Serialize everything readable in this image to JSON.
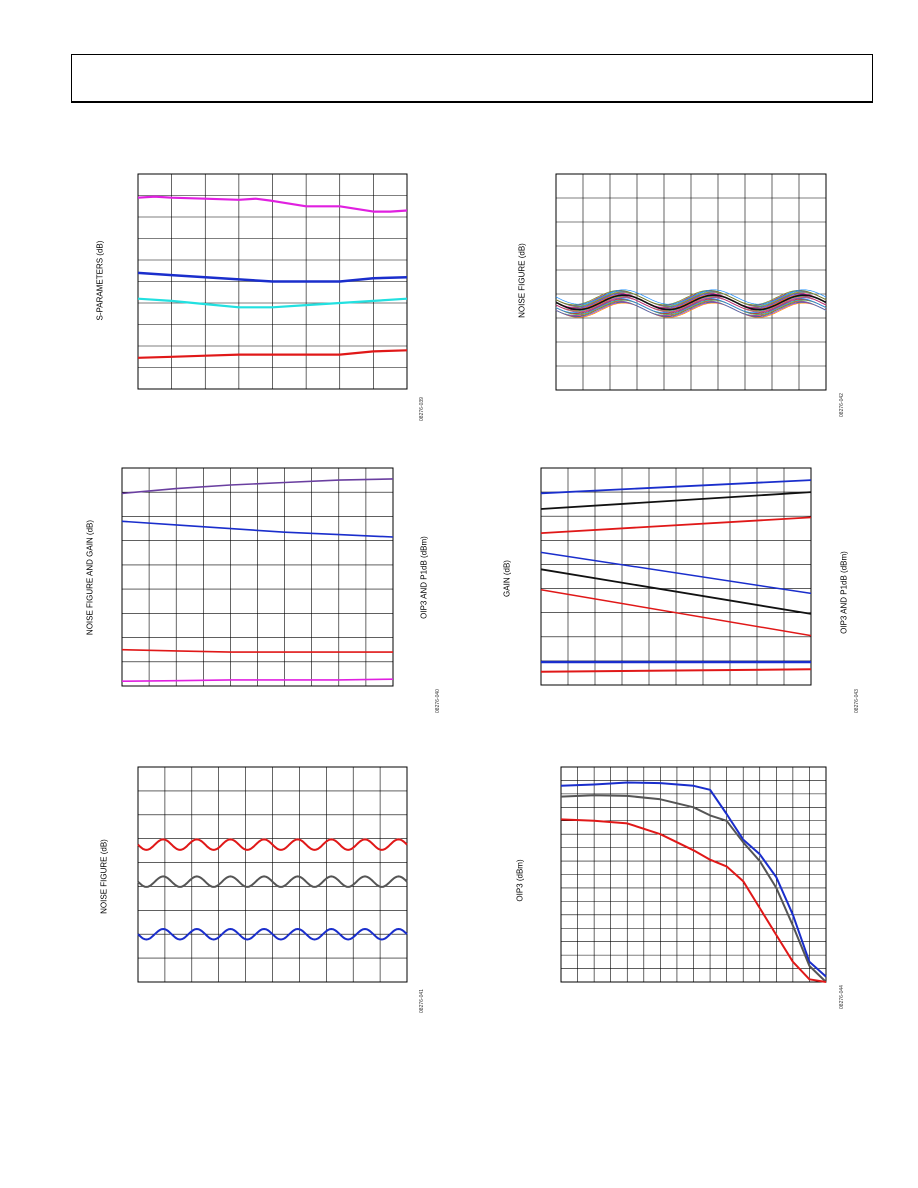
{
  "header": {
    "title": ""
  },
  "charts": [
    {
      "id": "c1",
      "ylabel": "S-PARAMETERS (dB)",
      "ylabel_right": "",
      "fignum": "08276-039",
      "grid": {
        "cols": 8,
        "rows": 10
      },
      "chart_data": {
        "type": "line",
        "xlim": [
          0,
          8
        ],
        "ylim": [
          0,
          10
        ],
        "series": [
          {
            "color": "#e020e0",
            "width": 2.2,
            "points": [
              [
                0,
                8.9
              ],
              [
                0.5,
                8.95
              ],
              [
                1,
                8.9
              ],
              [
                2,
                8.85
              ],
              [
                3,
                8.8
              ],
              [
                3.5,
                8.85
              ],
              [
                4,
                8.75
              ],
              [
                5,
                8.5
              ],
              [
                6,
                8.5
              ],
              [
                7,
                8.25
              ],
              [
                7.5,
                8.25
              ],
              [
                8,
                8.3
              ]
            ]
          },
          {
            "color": "#1a2ecc",
            "width": 2.5,
            "points": [
              [
                0,
                5.4
              ],
              [
                1,
                5.3
              ],
              [
                2,
                5.2
              ],
              [
                3,
                5.1
              ],
              [
                4,
                5.0
              ],
              [
                5,
                5.0
              ],
              [
                6,
                5.0
              ],
              [
                7,
                5.15
              ],
              [
                8,
                5.2
              ]
            ]
          },
          {
            "color": "#22e0e0",
            "width": 2.2,
            "points": [
              [
                0,
                4.2
              ],
              [
                1,
                4.1
              ],
              [
                2,
                3.95
              ],
              [
                3,
                3.8
              ],
              [
                4,
                3.8
              ],
              [
                5,
                3.9
              ],
              [
                6,
                4.0
              ],
              [
                7,
                4.1
              ],
              [
                8,
                4.2
              ]
            ]
          },
          {
            "color": "#e01818",
            "width": 2.2,
            "points": [
              [
                0,
                1.45
              ],
              [
                1,
                1.5
              ],
              [
                2,
                1.55
              ],
              [
                3,
                1.6
              ],
              [
                4,
                1.6
              ],
              [
                5,
                1.6
              ],
              [
                6,
                1.6
              ],
              [
                7,
                1.75
              ],
              [
                8,
                1.8
              ]
            ]
          }
        ]
      }
    },
    {
      "id": "c2",
      "ylabel": "NOISE FIGURE (dB)",
      "ylabel_right": "",
      "fignum": "08276-042",
      "grid": {
        "cols": 10,
        "rows": 9
      },
      "chart_data": {
        "type": "line",
        "xlim": [
          0,
          10
        ],
        "ylim": [
          0,
          9
        ],
        "band": {
          "center": 3.6,
          "amplitude": 0.3,
          "cycles": 3,
          "count": 26,
          "spread": 0.55,
          "colors": [
            "#ff8c00",
            "#8a2be2",
            "#2e8b57",
            "#ff1493",
            "#4682b4",
            "#b8860b",
            "#00ced1",
            "#dc143c",
            "#6b8e23",
            "#1e90ff",
            "#9932cc",
            "#ff6347",
            "#20b2aa",
            "#daa520",
            "#c71585",
            "#228b22"
          ]
        },
        "series": [
          {
            "color": "#111111",
            "width": 1.6,
            "wave": {
              "center": 3.65,
              "amplitude": 0.3,
              "cycles": 3
            }
          }
        ]
      }
    },
    {
      "id": "c3",
      "ylabel": "NOISE FIGURE AND GAIN (dB)",
      "ylabel_right": "OIP3 AND P1dB (dBm)",
      "fignum": "08276-040",
      "grid": {
        "cols": 10,
        "rows": 9
      },
      "chart_data": {
        "type": "line",
        "xlim": [
          0,
          10
        ],
        "ylim": [
          0,
          9
        ],
        "series": [
          {
            "color": "#6a3fa0",
            "width": 1.6,
            "points": [
              [
                0,
                7.95
              ],
              [
                2,
                8.15
              ],
              [
                4,
                8.3
              ],
              [
                6,
                8.4
              ],
              [
                8,
                8.5
              ],
              [
                10,
                8.55
              ]
            ]
          },
          {
            "color": "#1a2ecc",
            "width": 1.6,
            "points": [
              [
                0,
                6.8
              ],
              [
                2,
                6.65
              ],
              [
                4,
                6.5
              ],
              [
                6,
                6.35
              ],
              [
                8,
                6.25
              ],
              [
                10,
                6.15
              ]
            ]
          },
          {
            "color": "#e01818",
            "width": 1.6,
            "points": [
              [
                0,
                1.5
              ],
              [
                2,
                1.45
              ],
              [
                4,
                1.4
              ],
              [
                6,
                1.4
              ],
              [
                8,
                1.4
              ],
              [
                10,
                1.4
              ]
            ]
          },
          {
            "color": "#e020e0",
            "width": 1.6,
            "points": [
              [
                0,
                0.2
              ],
              [
                2,
                0.22
              ],
              [
                4,
                0.25
              ],
              [
                6,
                0.25
              ],
              [
                8,
                0.25
              ],
              [
                10,
                0.28
              ]
            ]
          }
        ]
      }
    },
    {
      "id": "c4",
      "ylabel": "GAIN (dB)",
      "ylabel_right": "OIP3 AND P1dB (dBm)",
      "fignum": "08276-043",
      "grid": {
        "cols": 10,
        "rows": 9
      },
      "chart_data": {
        "type": "line",
        "xlim": [
          0,
          10
        ],
        "ylim": [
          0,
          9
        ],
        "series": [
          {
            "color": "#1a2ecc",
            "width": 1.8,
            "points": [
              [
                0,
                7.95
              ],
              [
                10,
                8.5
              ]
            ]
          },
          {
            "color": "#111111",
            "width": 1.8,
            "points": [
              [
                0,
                7.3
              ],
              [
                10,
                8.0
              ]
            ]
          },
          {
            "color": "#e01818",
            "width": 1.8,
            "points": [
              [
                0,
                6.3
              ],
              [
                10,
                6.95
              ]
            ]
          },
          {
            "color": "#1a2ecc",
            "width": 1.5,
            "points": [
              [
                0,
                5.5
              ],
              [
                10,
                3.8
              ]
            ]
          },
          {
            "color": "#111111",
            "width": 1.8,
            "points": [
              [
                0,
                4.8
              ],
              [
                10,
                2.95
              ]
            ]
          },
          {
            "color": "#e01818",
            "width": 1.5,
            "points": [
              [
                0,
                3.95
              ],
              [
                10,
                2.05
              ]
            ]
          },
          {
            "color": "#1a2ecc",
            "width": 2.4,
            "points": [
              [
                0,
                0.95
              ],
              [
                10,
                0.95
              ]
            ]
          },
          {
            "color": "#e01818",
            "width": 2.0,
            "points": [
              [
                0,
                0.55
              ],
              [
                10,
                0.65
              ]
            ]
          }
        ]
      }
    },
    {
      "id": "c5",
      "ylabel": "NOISE FIGURE (dB)",
      "ylabel_right": "",
      "fignum": "08276-041",
      "grid": {
        "cols": 10,
        "rows": 9
      },
      "chart_data": {
        "type": "line",
        "xlim": [
          0,
          10
        ],
        "ylim": [
          0,
          9
        ],
        "series": [
          {
            "color": "#e01818",
            "width": 2.0,
            "wave": {
              "center": 5.75,
              "amplitude": 0.22,
              "cycles": 8
            }
          },
          {
            "color": "#555555",
            "width": 2.0,
            "wave": {
              "center": 4.2,
              "amplitude": 0.22,
              "cycles": 8
            }
          },
          {
            "color": "#1a2ecc",
            "width": 2.0,
            "wave": {
              "center": 2.0,
              "amplitude": 0.22,
              "cycles": 8
            }
          }
        ]
      }
    },
    {
      "id": "c6",
      "ylabel": "OIP3 (dBm)",
      "ylabel_right": "",
      "fignum": "08276-044",
      "grid": {
        "cols": 16,
        "rows": 16
      },
      "chart_data": {
        "type": "line",
        "xlim": [
          0,
          16
        ],
        "ylim": [
          0,
          16
        ],
        "series": [
          {
            "color": "#1a2ecc",
            "width": 2.0,
            "points": [
              [
                0,
                14.6
              ],
              [
                2,
                14.7
              ],
              [
                4,
                14.85
              ],
              [
                6,
                14.8
              ],
              [
                8,
                14.6
              ],
              [
                9,
                14.3
              ],
              [
                10,
                12.5
              ],
              [
                11,
                10.6
              ],
              [
                12,
                9.5
              ],
              [
                13,
                7.8
              ],
              [
                14,
                5.0
              ],
              [
                15,
                1.5
              ],
              [
                16,
                0.4
              ]
            ]
          },
          {
            "color": "#555555",
            "width": 2.0,
            "points": [
              [
                0,
                13.8
              ],
              [
                2,
                13.9
              ],
              [
                4,
                13.85
              ],
              [
                6,
                13.6
              ],
              [
                8,
                13.0
              ],
              [
                9,
                12.4
              ],
              [
                10,
                12.0
              ],
              [
                11,
                10.4
              ],
              [
                12,
                9.0
              ],
              [
                13,
                7.0
              ],
              [
                14,
                4.2
              ],
              [
                15,
                1.2
              ],
              [
                16,
                0.0
              ]
            ]
          },
          {
            "color": "#e01818",
            "width": 2.0,
            "points": [
              [
                0,
                12.1
              ],
              [
                2,
                12.0
              ],
              [
                4,
                11.8
              ],
              [
                6,
                11.0
              ],
              [
                8,
                9.8
              ],
              [
                9,
                9.1
              ],
              [
                10,
                8.6
              ],
              [
                11,
                7.5
              ],
              [
                12,
                5.5
              ],
              [
                13,
                3.5
              ],
              [
                14,
                1.5
              ],
              [
                15,
                0.2
              ],
              [
                16,
                0.0
              ]
            ]
          }
        ]
      }
    }
  ]
}
